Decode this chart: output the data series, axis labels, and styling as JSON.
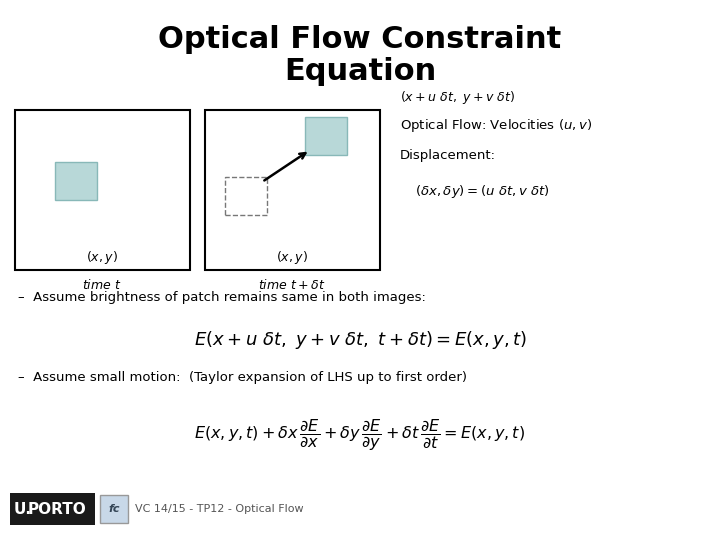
{
  "title_line1": "Optical Flow Constraint",
  "title_line2": "Equation",
  "title_fontsize": 22,
  "bg_color": "#ffffff",
  "patch_color": "#b8d8d8",
  "footer_text": "VC 14/15 - TP12 - Optical Flow",
  "porto_bg": "#1a1a1a",
  "porto_text_color": "#ffffff",
  "icon_bg": "#c8d8e8"
}
